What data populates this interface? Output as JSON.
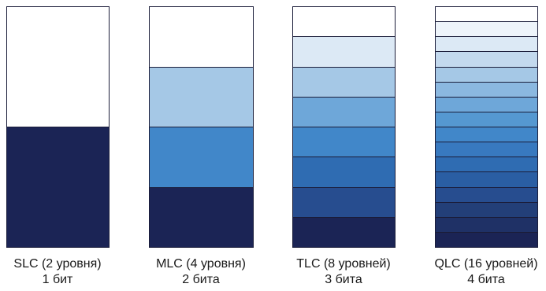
{
  "cells": [
    {
      "name": "SLC (2 уровня)",
      "bits": "1 бит",
      "levels": 2,
      "colors": [
        "#ffffff",
        "#1b2455"
      ]
    },
    {
      "name": "MLC (4 уровня)",
      "bits": "2 бита",
      "levels": 4,
      "colors": [
        "#ffffff",
        "#a5c8e6",
        "#4187c9",
        "#1b2455"
      ]
    },
    {
      "name": "TLC (8 уровней)",
      "bits": "3 бита",
      "levels": 8,
      "colors": [
        "#ffffff",
        "#dce9f5",
        "#a5c8e6",
        "#6ea7d9",
        "#4187c9",
        "#2f6cb2",
        "#274d8f",
        "#1b2455"
      ]
    },
    {
      "name": "QLC (16 уровней)",
      "bits": "4 бита",
      "levels": 16,
      "colors": [
        "#ffffff",
        "#eef4fa",
        "#dce9f5",
        "#c3d9ee",
        "#a5c8e6",
        "#8bb8e0",
        "#6ea7d9",
        "#5598d1",
        "#4187c9",
        "#3879bf",
        "#2f6cb2",
        "#2a5ea3",
        "#274d8f",
        "#233f78",
        "#1f3166",
        "#1b2455"
      ]
    }
  ]
}
